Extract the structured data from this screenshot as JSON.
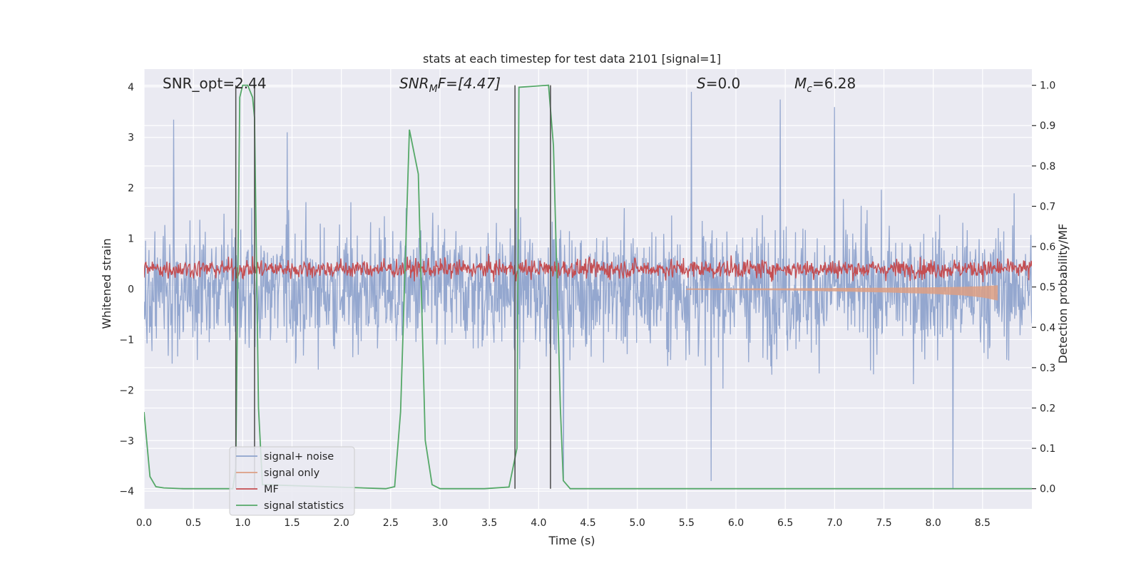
{
  "chart_data": {
    "type": "line",
    "title": "stats at each timestep for test data 2101 [signal=1]",
    "xlabel": "Time (s)",
    "ylabel": "Whitened strain",
    "ylabel_right": "Detection probability/MF",
    "xlim": [
      0.0,
      9.0
    ],
    "ylim": [
      -4.35,
      4.35
    ],
    "ylim_right": [
      -0.05,
      1.04
    ],
    "x_ticks": [
      "0.0",
      "0.5",
      "1.0",
      "1.5",
      "2.0",
      "2.5",
      "3.0",
      "3.5",
      "4.0",
      "4.5",
      "5.0",
      "5.5",
      "6.0",
      "6.5",
      "7.0",
      "7.5",
      "8.0",
      "8.5"
    ],
    "x_tick_values": [
      0.0,
      0.5,
      1.0,
      1.5,
      2.0,
      2.5,
      3.0,
      3.5,
      4.0,
      4.5,
      5.0,
      5.5,
      6.0,
      6.5,
      7.0,
      7.5,
      8.0,
      8.5
    ],
    "y_ticks": [
      "4",
      "3",
      "2",
      "1",
      "0",
      "−1",
      "−2",
      "−3",
      "−4"
    ],
    "y_tick_values": [
      4,
      3,
      2,
      1,
      0,
      -1,
      -2,
      -3,
      -4
    ],
    "y_ticks_right": [
      "1.0",
      "0.9",
      "0.8",
      "0.7",
      "0.6",
      "0.5",
      "0.4",
      "0.3",
      "0.2",
      "0.1",
      "0.0"
    ],
    "y_tick_values_right": [
      1.0,
      0.9,
      0.8,
      0.7,
      0.6,
      0.5,
      0.4,
      0.3,
      0.2,
      0.1,
      0.0
    ],
    "annotations": {
      "snr_opt": "SNR_opt=2.44",
      "snr_mf_base": "SNR",
      "snr_mf_sub": "M",
      "snr_mf_rest": "F=[4.47]",
      "s_var": "S",
      "s_value": "=0.0",
      "mc_var": "M",
      "mc_sub": "c",
      "mc_value": "=6.28"
    },
    "legend": {
      "location": "lower-left",
      "entries": [
        "signal+ noise",
        "signal only",
        "MF",
        "signal statistics"
      ]
    },
    "colors": {
      "signal_noise": "#8fa3cc",
      "signal_only": "#dd9f84",
      "mf": "#c44e52",
      "signal_statistics": "#55a868",
      "vlines": "#4a4a4a",
      "background": "#eaeaf2",
      "grid": "#ffffff"
    },
    "series": [
      {
        "name": "signal+ noise",
        "axis": "left",
        "description": "whitened noisy strain, roughly between -2.8 and 3.4 with spikes to 4 and -4",
        "x_range": [
          0.0,
          9.0
        ],
        "typical_amplitude": 1.6,
        "spikes": [
          [
            0.3,
            3.35
          ],
          [
            1.45,
            3.1
          ],
          [
            5.55,
            3.9
          ],
          [
            8.2,
            -3.95
          ],
          [
            5.75,
            -3.8
          ],
          [
            4.25,
            -3.75
          ],
          [
            6.45,
            3.75
          ],
          [
            7.0,
            3.6
          ]
        ]
      },
      {
        "name": "signal only",
        "axis": "left",
        "description": "chirp growing in amplitude toward merger near t=8.68 s",
        "x": [
          5.5,
          6.5,
          7.0,
          7.5,
          8.0,
          8.3,
          8.5,
          8.65,
          8.68
        ],
        "amplitude": [
          0.01,
          0.02,
          0.04,
          0.06,
          0.09,
          0.12,
          0.16,
          0.22,
          0.0
        ]
      },
      {
        "name": "MF",
        "axis": "right",
        "description": "matched filter output fluctuating between about 0.51 and 0.60",
        "x_range": [
          0.0,
          9.0
        ],
        "baseline": 0.545,
        "spread": 0.03
      },
      {
        "name": "signal statistics",
        "axis": "right",
        "x": [
          0.0,
          0.06,
          0.12,
          0.2,
          0.4,
          0.9,
          0.93,
          0.97,
          1.0,
          1.05,
          1.1,
          1.12,
          1.16,
          1.2,
          2.45,
          2.54,
          2.6,
          2.69,
          2.78,
          2.85,
          2.92,
          3.0,
          3.45,
          3.7,
          3.78,
          3.8,
          4.1,
          4.15,
          4.22,
          4.25,
          4.32,
          5.0,
          9.0
        ],
        "y": [
          0.19,
          0.03,
          0.005,
          0.002,
          0.0,
          0.0,
          0.05,
          0.97,
          1.0,
          1.0,
          0.97,
          0.92,
          0.2,
          0.01,
          0.0,
          0.005,
          0.19,
          0.89,
          0.78,
          0.12,
          0.01,
          0.0,
          0.0,
          0.004,
          0.1,
          0.995,
          1.0,
          0.85,
          0.2,
          0.02,
          0.0,
          0.0,
          0.0
        ]
      }
    ],
    "vertical_lines": [
      {
        "x": 0.93,
        "y_top": 1.0
      },
      {
        "x": 1.12,
        "y_top": 1.0
      },
      {
        "x": 3.76,
        "y_top": 1.0
      },
      {
        "x": 4.12,
        "y_top": 1.0
      }
    ]
  }
}
